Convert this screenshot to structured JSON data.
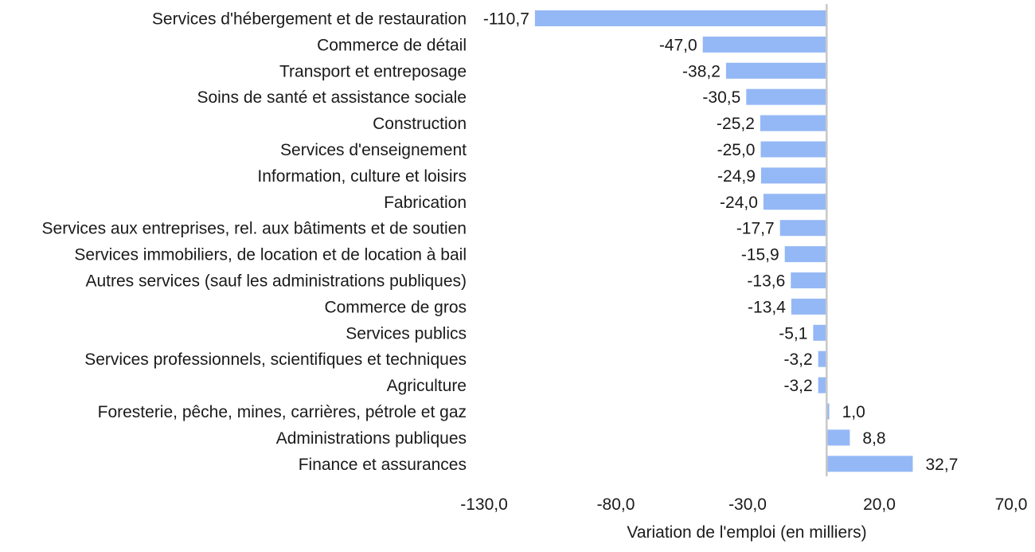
{
  "chart_data": {
    "type": "bar",
    "orientation": "horizontal",
    "categories": [
      "Services d'hébergement et de restauration",
      "Commerce de détail",
      "Transport et entreposage",
      "Soins de santé et assistance sociale",
      "Construction",
      "Services d'enseignement",
      "Information, culture et loisirs",
      "Fabrication",
      "Services aux entreprises, rel. aux bâtiments et de soutien",
      "Services immobiliers, de location et de location à bail",
      "Autres services (sauf les administrations publiques)",
      "Commerce de gros",
      "Services publics",
      "Services professionnels, scientifiques et techniques",
      "Agriculture",
      "Foresterie, pêche, mines, carrières, pétrole et gaz",
      "Administrations publiques",
      "Finance et assurances"
    ],
    "values": [
      -110.7,
      -47.0,
      -38.2,
      -30.5,
      -25.2,
      -25.0,
      -24.9,
      -24.0,
      -17.7,
      -15.9,
      -13.6,
      -13.4,
      -5.1,
      -3.2,
      -3.2,
      1.0,
      8.8,
      32.7
    ],
    "value_labels": [
      "-110,7",
      "-47,0",
      "-38,2",
      "-30,5",
      "-25,2",
      "-25,0",
      "-24,9",
      "-24,0",
      "-17,7",
      "-15,9",
      "-13,6",
      "-13,4",
      "-5,1",
      "-3,2",
      "-3,2",
      "1,0",
      "8,8",
      "32,7"
    ],
    "xlim": [
      -130,
      70
    ],
    "xticks": [
      -130,
      -80,
      -30,
      20,
      70
    ],
    "xtick_labels": [
      "-130,0",
      "-80,0",
      "-30,0",
      "20,0",
      "70,0"
    ],
    "xlabel": "Variation de l'emploi (en milliers)",
    "ylabel": "",
    "title": "",
    "grid": false,
    "legend": "none",
    "bar_color": "#94b8f5",
    "zero_line_color": "#c8c8c8"
  }
}
